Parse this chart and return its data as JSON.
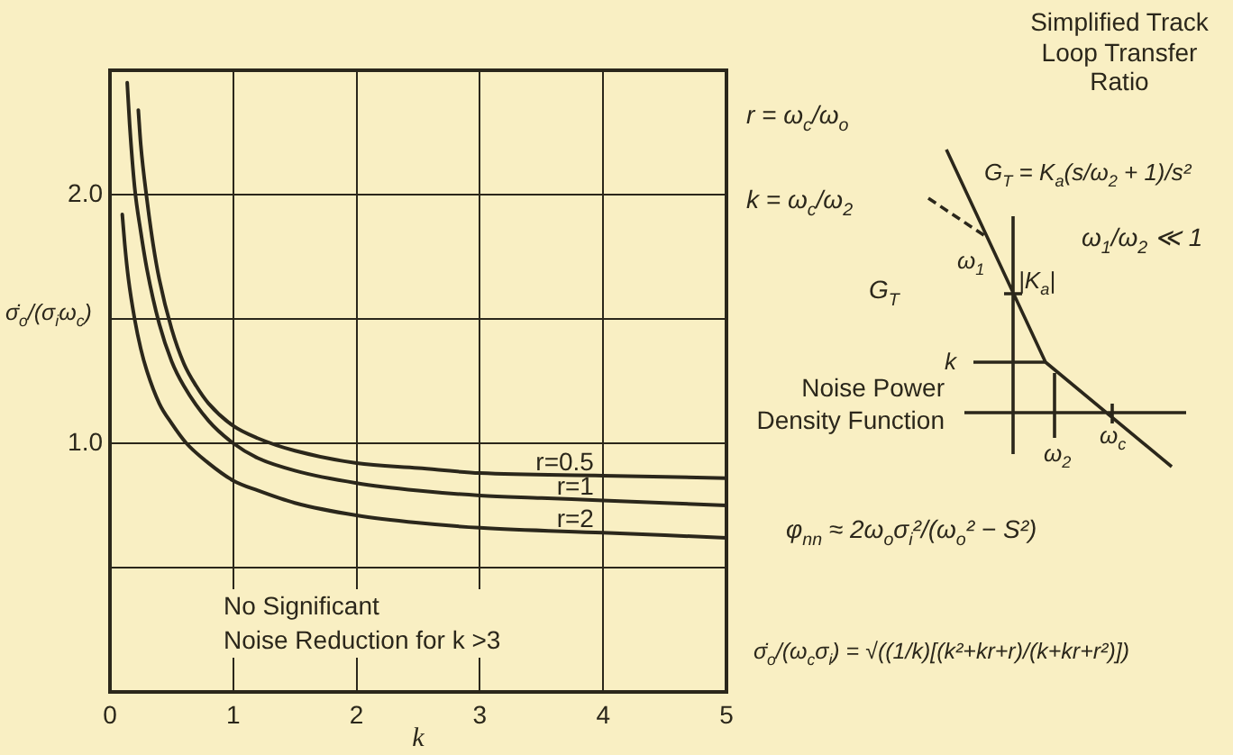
{
  "chart_data": {
    "type": "line",
    "xlabel": "k",
    "ylabel": "σ̇$_{o}$/(σ$_{i}$ω$_{c}$)",
    "xlim": [
      0,
      5
    ],
    "xticks": [
      0,
      1,
      2,
      3,
      4,
      5
    ],
    "ylim": [
      0,
      2.5
    ],
    "yticks": [
      {
        "value": 0,
        "label": null
      },
      {
        "value": 0.5,
        "label": null
      },
      {
        "value": 1,
        "label": "1.0"
      },
      {
        "value": 1.5,
        "label": null
      },
      {
        "value": 2,
        "label": "2.0"
      },
      {
        "value": 2.5,
        "label": null
      }
    ],
    "grid": true,
    "marker": "none",
    "line_style": "solid",
    "series": [
      {
        "name": "r=0.5",
        "color": "#2b271b",
        "x": [
          0.23,
          0.25,
          0.3,
          0.35,
          0.4,
          0.5,
          0.6,
          0.7,
          0.8,
          1,
          1.2,
          1.5,
          2,
          2.5,
          3,
          4,
          5
        ],
        "values": [
          2.34,
          2.2,
          1.98,
          1.8,
          1.66,
          1.46,
          1.32,
          1.23,
          1.16,
          1.07,
          1.02,
          0.97,
          0.92,
          0.9,
          0.88,
          0.87,
          0.86
        ]
      },
      {
        "name": "r=1",
        "color": "#2b271b",
        "x": [
          0.14,
          0.16,
          0.2,
          0.25,
          0.3,
          0.4,
          0.5,
          0.6,
          0.8,
          1,
          1.2,
          1.5,
          2,
          2.5,
          3,
          3.5,
          4,
          4.5,
          5
        ],
        "values": [
          2.45,
          2.28,
          2.03,
          1.85,
          1.7,
          1.48,
          1.33,
          1.23,
          1.09,
          1.0,
          0.94,
          0.89,
          0.84,
          0.81,
          0.79,
          0.78,
          0.77,
          0.76,
          0.75
        ]
      },
      {
        "name": "r=2",
        "color": "#2b271b",
        "x": [
          0.1,
          0.12,
          0.15,
          0.2,
          0.25,
          0.3,
          0.4,
          0.5,
          0.62,
          0.8,
          1,
          1.2,
          1.5,
          2,
          2.5,
          3,
          4,
          5
        ],
        "values": [
          1.92,
          1.8,
          1.66,
          1.5,
          1.38,
          1.29,
          1.16,
          1.08,
          1.0,
          0.92,
          0.85,
          0.81,
          0.76,
          0.71,
          0.68,
          0.66,
          0.64,
          0.62
        ]
      }
    ],
    "annotations": [
      "No Significant\nNoise Reduction for k >3",
      "r = ω$_{c}$/ω$_{o}$",
      "k = ω$_{c}$/ω$_{2}$",
      "Simplified Track\nLoop Transfer\nRatio",
      "G$_{T}$ = K$_{a}$(s/ω$_{2}$ + 1)/s²",
      "ω$_{1}$/ω$_{2}$ ≪ 1",
      "ω$_{1}$",
      "|K$_{a}$|",
      "G$_{T}$",
      "k",
      "ω$_{2}$",
      "ω$_{c}$",
      "Noise Power\nDensity Function",
      "φ$_{nn}$ ≈ 2ω$_{o}$σ$_{i}$²/(ω$_{o}$² − S²)",
      "σ̇$_{o}$/(ω$_{c}$σ$_{i}$) = √((1/k)[(k²+kr+r)/(k+kr+r²)])"
    ]
  }
}
